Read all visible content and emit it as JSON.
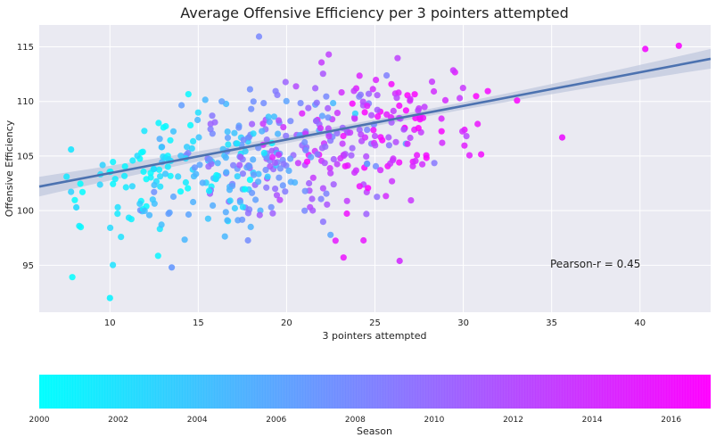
{
  "chart_data": [
    {
      "type": "scatter",
      "title": "Average Offensive Efficiency per 3 pointers attempted",
      "xlabel": "3 pointers attempted",
      "ylabel": "Offensive Efficiency",
      "xlim": [
        6,
        44
      ],
      "ylim": [
        90.7,
        117
      ],
      "xticks": [
        10,
        15,
        20,
        25,
        30,
        35,
        40
      ],
      "yticks": [
        95,
        100,
        105,
        110,
        115
      ],
      "grid": true,
      "color_by": "Season",
      "colormap": [
        "#00ffff",
        "#ff00ff"
      ],
      "regression": {
        "x": [
          6,
          44
        ],
        "y": [
          102.2,
          113.9
        ],
        "band_halfwidth_edges": 0.9,
        "band_halfwidth_center": 0.3,
        "color": "#4c72b0",
        "band_color": "#c0c8dd"
      },
      "annotation": "Pearson-r = 0.45",
      "point_count": 480
    },
    {
      "type": "colorbar",
      "xlabel": "Season",
      "xlim": [
        2000,
        2017
      ],
      "ticks": [
        2000,
        2002,
        2004,
        2006,
        2008,
        2010,
        2012,
        2014,
        2016
      ],
      "colors": [
        "#00ffff",
        "#ff00ff"
      ]
    }
  ]
}
